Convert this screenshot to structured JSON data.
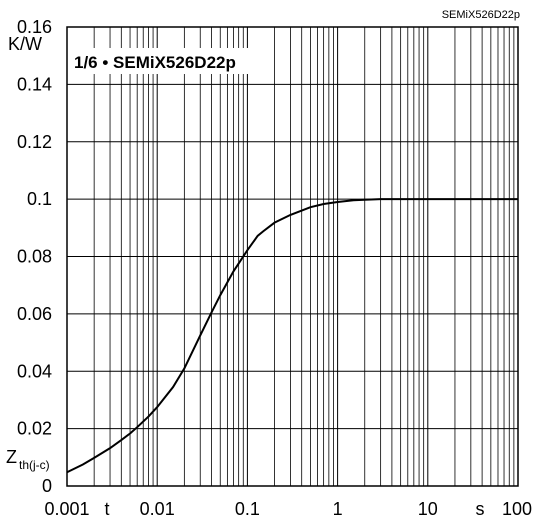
{
  "chart_data": {
    "type": "line",
    "title": "1/6 • SEMiX526D22p",
    "part_number": "SEMiX526D22p",
    "xscale": "log",
    "xlim": [
      0.001,
      100
    ],
    "ylim": [
      0,
      0.16
    ],
    "grid": true,
    "xlabel": "t",
    "xunit": "s",
    "ylabel_main": "Z",
    "ylabel_sub": "th(j-c)",
    "yunit": "K/W",
    "x_ticks": [
      "0.001",
      "0.01",
      "0.1",
      "1",
      "10",
      "100"
    ],
    "y_ticks": [
      "0",
      "0.02",
      "0.04",
      "0.06",
      "0.08",
      "0.1",
      "0.12",
      "0.14",
      "0.16"
    ],
    "series": [
      {
        "x": [
          0.001,
          0.0015,
          0.002,
          0.003,
          0.004,
          0.005,
          0.006,
          0.008,
          0.01,
          0.015,
          0.02,
          0.03,
          0.04,
          0.05,
          0.07,
          0.1,
          0.13,
          0.15,
          0.2,
          0.3,
          0.5,
          0.7,
          1,
          1.5,
          2,
          3,
          5,
          10,
          20,
          50,
          100
        ],
        "y": [
          0.0048,
          0.0075,
          0.0098,
          0.0132,
          0.016,
          0.0183,
          0.0205,
          0.0242,
          0.0275,
          0.0345,
          0.041,
          0.0525,
          0.0605,
          0.0665,
          0.0748,
          0.0822,
          0.0872,
          0.0888,
          0.0918,
          0.0945,
          0.0972,
          0.0983,
          0.099,
          0.0996,
          0.0998,
          0.1,
          0.1,
          0.1,
          0.1,
          0.1,
          0.1
        ]
      }
    ]
  }
}
